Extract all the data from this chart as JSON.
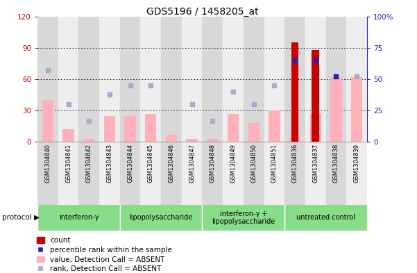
{
  "title": "GDS5196 / 1458205_at",
  "samples": [
    "GSM1304840",
    "GSM1304841",
    "GSM1304842",
    "GSM1304843",
    "GSM1304844",
    "GSM1304845",
    "GSM1304846",
    "GSM1304847",
    "GSM1304848",
    "GSM1304849",
    "GSM1304850",
    "GSM1304851",
    "GSM1304836",
    "GSM1304837",
    "GSM1304838",
    "GSM1304839"
  ],
  "pink_bar_values": [
    40,
    12,
    3,
    25,
    25,
    27,
    7,
    3,
    3,
    27,
    18,
    30,
    5,
    27,
    62,
    62
  ],
  "blue_sq_rank": [
    57,
    30,
    17,
    38,
    45,
    45,
    null,
    30,
    17,
    40,
    30,
    45,
    null,
    null,
    52,
    52
  ],
  "red_bar_count": [
    0,
    0,
    0,
    0,
    0,
    0,
    0,
    0,
    0,
    0,
    0,
    0,
    95,
    88,
    0,
    0
  ],
  "dark_blue_rank": [
    null,
    null,
    null,
    null,
    null,
    null,
    null,
    null,
    null,
    null,
    null,
    null,
    65,
    65,
    52,
    null
  ],
  "protocols": [
    {
      "label": "interferon-γ",
      "start": 0,
      "end": 4
    },
    {
      "label": "lipopolysaccharide",
      "start": 4,
      "end": 8
    },
    {
      "label": "interferon-γ +\nlipopolysaccharide",
      "start": 8,
      "end": 12
    },
    {
      "label": "untreated control",
      "start": 12,
      "end": 16
    }
  ],
  "ylim_left": [
    0,
    120
  ],
  "ylim_right": [
    0,
    100
  ],
  "yticks_left": [
    0,
    30,
    60,
    90,
    120
  ],
  "yticks_right": [
    0,
    25,
    50,
    75,
    100
  ],
  "ytick_labels_right": [
    "0",
    "25",
    "50",
    "75",
    "100%"
  ],
  "bar_width": 0.55,
  "pink_color": "#FFB0B8",
  "red_color": "#CC0000",
  "blue_sq_color": "#AAAACC",
  "dark_blue_color": "#2222BB",
  "left_axis_color": "#CC0000",
  "right_axis_color": "#2222BB",
  "protocol_bg_color": "#88DD88"
}
